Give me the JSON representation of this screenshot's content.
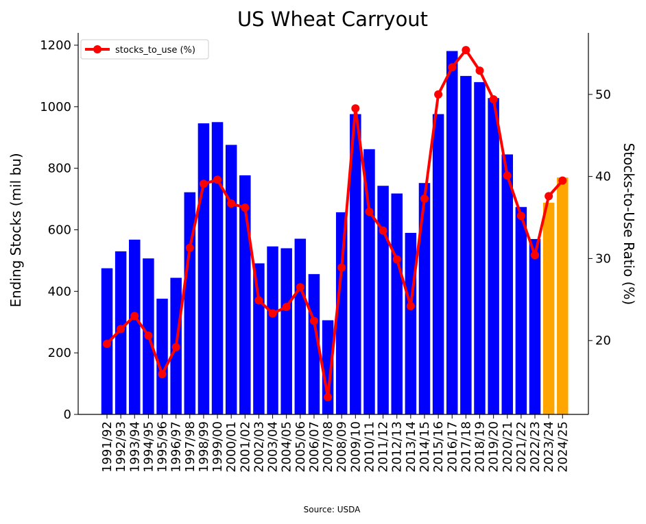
{
  "chart_data": {
    "type": "bar",
    "title": "US Wheat Carryout",
    "ylabel": "Ending Stocks (mil bu)",
    "y2label": "Stocks-to-Use Ratio (%)",
    "source": "Source: USDA",
    "categories": [
      "1991/92",
      "1992/93",
      "1993/94",
      "1994/95",
      "1995/96",
      "1996/97",
      "1997/98",
      "1998/99",
      "1999/00",
      "2000/01",
      "2001/02",
      "2002/03",
      "2003/04",
      "2004/05",
      "2005/06",
      "2006/07",
      "2007/08",
      "2008/09",
      "2009/10",
      "2010/11",
      "2011/12",
      "2012/13",
      "2013/14",
      "2014/15",
      "2015/16",
      "2016/17",
      "2017/18",
      "2018/19",
      "2019/20",
      "2020/21",
      "2021/22",
      "2022/23",
      "2023/24",
      "2024/25"
    ],
    "ylim": [
      0,
      1240
    ],
    "yticks": [
      0,
      200,
      400,
      600,
      800,
      1000,
      1200
    ],
    "y2lim": [
      11,
      57.5
    ],
    "y2ticks": [
      20,
      30,
      40,
      50
    ],
    "colors": {
      "actual": "#0000ff",
      "projected": "#ffa500",
      "line": "#ff0000"
    },
    "series": [
      {
        "kind": "bar",
        "values": [
          475,
          530,
          568,
          507,
          376,
          444,
          722,
          946,
          950,
          876,
          777,
          491,
          546,
          540,
          571,
          456,
          306,
          657,
          976,
          862,
          743,
          718,
          590,
          752,
          976,
          1181,
          1100,
          1080,
          1028,
          845,
          674,
          570,
          688,
          770
        ],
        "projected_from_index": 32
      },
      {
        "kind": "line",
        "name": "stocks_to_use (%)",
        "axis": "right",
        "values": [
          19.6,
          21.4,
          23.0,
          20.6,
          15.9,
          19.2,
          31.3,
          39.1,
          39.6,
          36.7,
          36.2,
          24.9,
          23.3,
          24.1,
          26.5,
          22.4,
          13.1,
          28.9,
          48.3,
          35.7,
          33.4,
          29.9,
          24.2,
          37.3,
          50.0,
          53.3,
          55.4,
          52.9,
          49.4,
          40.1,
          35.2,
          30.4,
          37.6,
          39.5
        ]
      }
    ],
    "legend": {
      "position": "top-left",
      "label": "stocks_to_use (%)"
    },
    "grid": false
  }
}
